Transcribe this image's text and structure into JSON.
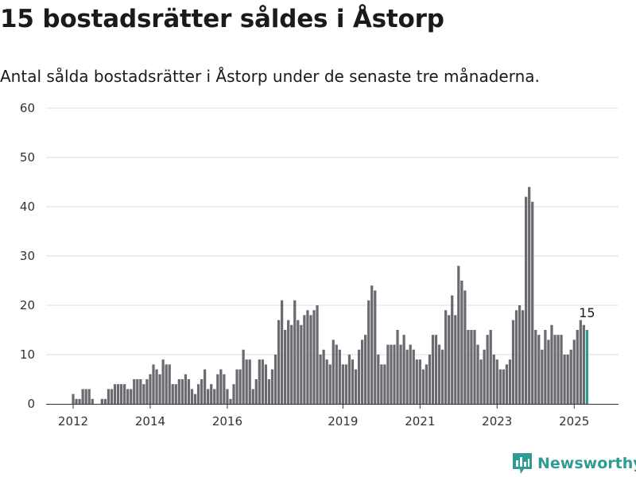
{
  "header": {
    "title": "15 bostadsrätter såldes i Åstorp",
    "subtitle": "Antal sålda bostadsrätter i Åstorp under de senaste tre månaderna."
  },
  "brand": {
    "name": "Newsworthy",
    "icon": "newsworthy-logo-icon",
    "color": "#2e9c92"
  },
  "chart_data": {
    "type": "bar",
    "title": "15 bostadsrätter såldes i Åstorp",
    "subtitle": "Antal sålda bostadsrätter i Åstorp under de senaste tre månaderna.",
    "xlabel": "",
    "ylabel": "",
    "ylim": [
      0,
      60
    ],
    "yticks": [
      0,
      10,
      20,
      30,
      40,
      50,
      60
    ],
    "xticks": [
      "2012",
      "2014",
      "2016",
      "2019",
      "2021",
      "2023",
      "2025"
    ],
    "grid": true,
    "legend": "none",
    "bar_color": "#6b6a70",
    "highlight_color": "#2a9d8f",
    "annotation": "15",
    "x": [
      "2012-01",
      "2012-02",
      "2012-03",
      "2012-04",
      "2012-05",
      "2012-06",
      "2012-07",
      "2012-08",
      "2012-09",
      "2012-10",
      "2012-11",
      "2012-12",
      "2013-01",
      "2013-02",
      "2013-03",
      "2013-04",
      "2013-05",
      "2013-06",
      "2013-07",
      "2013-08",
      "2013-09",
      "2013-10",
      "2013-11",
      "2013-12",
      "2014-01",
      "2014-02",
      "2014-03",
      "2014-04",
      "2014-05",
      "2014-06",
      "2014-07",
      "2014-08",
      "2014-09",
      "2014-10",
      "2014-11",
      "2014-12",
      "2015-01",
      "2015-02",
      "2015-03",
      "2015-04",
      "2015-05",
      "2015-06",
      "2015-07",
      "2015-08",
      "2015-09",
      "2015-10",
      "2015-11",
      "2015-12",
      "2016-01",
      "2016-02",
      "2016-03",
      "2016-04",
      "2016-05",
      "2016-06",
      "2016-07",
      "2016-08",
      "2016-09",
      "2016-10",
      "2016-11",
      "2016-12",
      "2017-01",
      "2017-02",
      "2017-03",
      "2017-04",
      "2017-05",
      "2017-06",
      "2017-07",
      "2017-08",
      "2017-09",
      "2017-10",
      "2017-11",
      "2017-12",
      "2018-01",
      "2018-02",
      "2018-03",
      "2018-04",
      "2018-05",
      "2018-06",
      "2018-07",
      "2018-08",
      "2018-09",
      "2018-10",
      "2018-11",
      "2018-12",
      "2019-01",
      "2019-02",
      "2019-03",
      "2019-04",
      "2019-05",
      "2019-06",
      "2019-07",
      "2019-08",
      "2019-09",
      "2019-10",
      "2019-11",
      "2019-12",
      "2020-01",
      "2020-02",
      "2020-03",
      "2020-04",
      "2020-05",
      "2020-06",
      "2020-07",
      "2020-08",
      "2020-09",
      "2020-10",
      "2020-11",
      "2020-12",
      "2021-01",
      "2021-02",
      "2021-03",
      "2021-04",
      "2021-05",
      "2021-06",
      "2021-07",
      "2021-08",
      "2021-09",
      "2021-10",
      "2021-11",
      "2021-12",
      "2022-01",
      "2022-02",
      "2022-03",
      "2022-04",
      "2022-05",
      "2022-06",
      "2022-07",
      "2022-08",
      "2022-09",
      "2022-10",
      "2022-11",
      "2022-12",
      "2023-01",
      "2023-02",
      "2023-03",
      "2023-04",
      "2023-05",
      "2023-06",
      "2023-07",
      "2023-08",
      "2023-09",
      "2023-10",
      "2023-11",
      "2023-12",
      "2024-01",
      "2024-02",
      "2024-03",
      "2024-04",
      "2024-05",
      "2024-06",
      "2024-07",
      "2024-08",
      "2024-09",
      "2024-10",
      "2024-11",
      "2024-12",
      "2025-01",
      "2025-02",
      "2025-03",
      "2025-04",
      "2025-05"
    ],
    "values": [
      2,
      1,
      1,
      3,
      3,
      3,
      1,
      0,
      0,
      1,
      1,
      3,
      3,
      4,
      4,
      4,
      4,
      3,
      3,
      5,
      5,
      5,
      4,
      5,
      6,
      8,
      7,
      6,
      9,
      8,
      8,
      4,
      4,
      5,
      5,
      6,
      5,
      3,
      2,
      4,
      5,
      7,
      3,
      4,
      3,
      6,
      7,
      6,
      3,
      1,
      4,
      7,
      7,
      11,
      9,
      9,
      3,
      5,
      9,
      9,
      8,
      5,
      7,
      10,
      17,
      21,
      15,
      17,
      16,
      21,
      17,
      16,
      18,
      19,
      18,
      19,
      20,
      10,
      11,
      9,
      8,
      13,
      12,
      11,
      8,
      8,
      10,
      9,
      7,
      11,
      13,
      14,
      21,
      24,
      23,
      10,
      8,
      8,
      12,
      12,
      12,
      15,
      12,
      14,
      11,
      12,
      11,
      9,
      9,
      7,
      8,
      10,
      14,
      14,
      12,
      11,
      19,
      18,
      22,
      18,
      28,
      25,
      23,
      15,
      15,
      15,
      12,
      9,
      11,
      14,
      15,
      10,
      9,
      7,
      7,
      8,
      9,
      17,
      19,
      20,
      19,
      42,
      44,
      41,
      15,
      14,
      11,
      15,
      13,
      16,
      14,
      14,
      14,
      10,
      10,
      11,
      13,
      15,
      17,
      16,
      15
    ],
    "highlight_index": 160
  }
}
